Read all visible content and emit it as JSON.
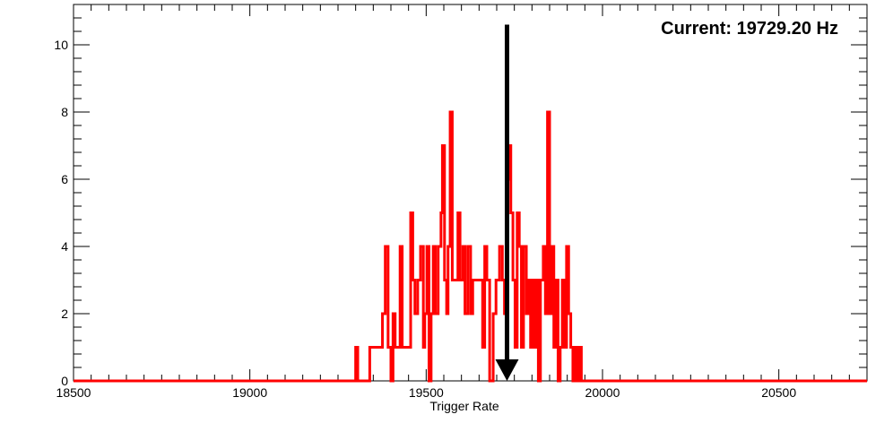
{
  "chart_data": {
    "type": "histogram",
    "title": "",
    "xlabel": "Trigger Rate",
    "ylabel": "",
    "xlim": [
      18500,
      20750
    ],
    "ylim": [
      0,
      11.2
    ],
    "x_ticks": [
      18500,
      19000,
      19500,
      20000,
      20500
    ],
    "y_ticks": [
      0,
      2,
      4,
      6,
      8,
      10
    ],
    "grid": false,
    "legend": "none",
    "line_color": "#ff0000",
    "marker_color": "#000000",
    "annotation": "Current: 19729.20 Hz",
    "marker": {
      "x": 19729.2,
      "y_top": 10.6,
      "y_bottom": 0
    },
    "bins": [
      [
        18500,
        0
      ],
      [
        19300,
        1
      ],
      [
        19306,
        0
      ],
      [
        19340,
        1
      ],
      [
        19376,
        2
      ],
      [
        19384,
        4
      ],
      [
        19392,
        1
      ],
      [
        19400,
        0
      ],
      [
        19406,
        2
      ],
      [
        19412,
        1
      ],
      [
        19426,
        4
      ],
      [
        19432,
        1
      ],
      [
        19452,
        1
      ],
      [
        19456,
        5
      ],
      [
        19462,
        3
      ],
      [
        19468,
        2
      ],
      [
        19476,
        3
      ],
      [
        19484,
        4
      ],
      [
        19492,
        1
      ],
      [
        19496,
        2
      ],
      [
        19502,
        4
      ],
      [
        19508,
        0
      ],
      [
        19514,
        2
      ],
      [
        19520,
        4
      ],
      [
        19526,
        2
      ],
      [
        19534,
        4
      ],
      [
        19542,
        5
      ],
      [
        19546,
        7
      ],
      [
        19552,
        3
      ],
      [
        19558,
        2
      ],
      [
        19562,
        4
      ],
      [
        19568,
        8
      ],
      [
        19574,
        3
      ],
      [
        19590,
        5
      ],
      [
        19596,
        3
      ],
      [
        19604,
        4
      ],
      [
        19610,
        2
      ],
      [
        19618,
        4
      ],
      [
        19626,
        2
      ],
      [
        19632,
        3
      ],
      [
        19660,
        1
      ],
      [
        19666,
        4
      ],
      [
        19672,
        3
      ],
      [
        19680,
        0
      ],
      [
        19690,
        2
      ],
      [
        19698,
        3
      ],
      [
        19708,
        4
      ],
      [
        19716,
        3
      ],
      [
        19722,
        2
      ],
      [
        19728,
        6
      ],
      [
        19734,
        7
      ],
      [
        19740,
        5
      ],
      [
        19746,
        3
      ],
      [
        19752,
        1
      ],
      [
        19758,
        5
      ],
      [
        19764,
        4
      ],
      [
        19770,
        1
      ],
      [
        19776,
        4
      ],
      [
        19784,
        2
      ],
      [
        19790,
        3
      ],
      [
        19796,
        1
      ],
      [
        19800,
        3
      ],
      [
        19806,
        1
      ],
      [
        19812,
        3
      ],
      [
        19818,
        0
      ],
      [
        19824,
        3
      ],
      [
        19832,
        4
      ],
      [
        19838,
        2
      ],
      [
        19844,
        8
      ],
      [
        19850,
        2
      ],
      [
        19856,
        4
      ],
      [
        19862,
        1
      ],
      [
        19868,
        3
      ],
      [
        19874,
        0
      ],
      [
        19880,
        1
      ],
      [
        19886,
        3
      ],
      [
        19892,
        1
      ],
      [
        19898,
        4
      ],
      [
        19904,
        2
      ],
      [
        19910,
        1
      ],
      [
        19916,
        0
      ],
      [
        19922,
        1
      ],
      [
        19928,
        0
      ],
      [
        19934,
        1
      ],
      [
        19940,
        0
      ],
      [
        20750,
        0
      ]
    ]
  }
}
